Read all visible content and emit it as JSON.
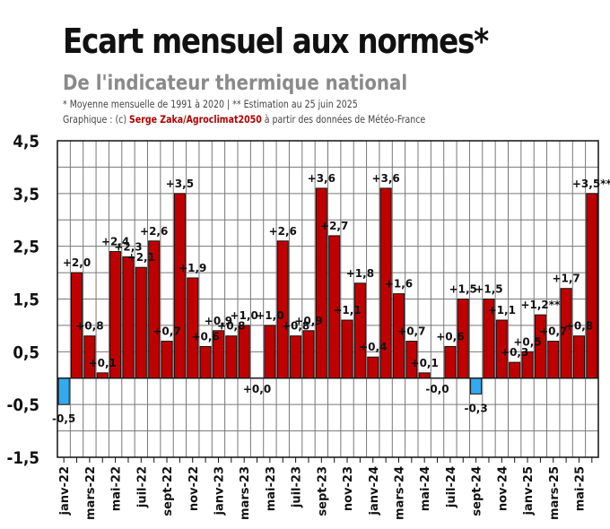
{
  "header": {
    "title": "Ecart mensuel aux normes*",
    "subtitle": "De l'indicateur thermique national",
    "note_line1": "* Moyenne mensuelle de 1991  à 2020 | ** Estimation  au 25 juin 2025",
    "note_prefix": "Graphique  : (c) ",
    "credit": "Serge Zaka/Agroclimat2050",
    "note_suffix": "  à partir des données de Météo-France"
  },
  "colors": {
    "positive": "#c00000",
    "negative": "#33aaee",
    "grid": "#777777",
    "outline": "#111111"
  },
  "chart_data": {
    "type": "bar",
    "title": "Ecart mensuel aux normes*",
    "subtitle": "De l'indicateur thermique national",
    "xlabel": "",
    "ylabel": "",
    "ylim": [
      -1.5,
      4.5
    ],
    "yticks": [
      "4,5",
      "3,5",
      "2,5",
      "1,5",
      "0,5",
      "-0,5",
      "-1,5"
    ],
    "ytick_values": [
      4.5,
      3.5,
      2.5,
      1.5,
      0.5,
      -0.5,
      -1.5
    ],
    "grid": true,
    "categories": [
      "janv-22",
      "févr-22",
      "mars-22",
      "avr-22",
      "mai-22",
      "juin-22",
      "juil-22",
      "août-22",
      "sept-22",
      "oct-22",
      "nov-22",
      "déc-22",
      "janv-23",
      "févr-23",
      "mars-23",
      "avr-23",
      "mai-23",
      "juin-23",
      "juil-23",
      "août-23",
      "sept-23",
      "oct-23",
      "nov-23",
      "déc-23",
      "janv-24",
      "févr-24",
      "mars-24",
      "avr-24",
      "mai-24",
      "juin-24",
      "juil-24",
      "août-24",
      "sept-24",
      "oct-24",
      "nov-24",
      "déc-24",
      "janv-25",
      "févr-25",
      "mars-25",
      "avr-25",
      "mai-25",
      "juin-25"
    ],
    "tick_labels": [
      "janv-22",
      "",
      "mars-22",
      "",
      "mai-22",
      "",
      "juil-22",
      "",
      "sept-22",
      "",
      "nov-22",
      "",
      "janv-23",
      "",
      "mars-23",
      "",
      "mai-23",
      "",
      "juil-23",
      "",
      "sept-23",
      "",
      "nov-23",
      "",
      "janv-24",
      "",
      "mars-24",
      "",
      "mai-24",
      "",
      "juil-24",
      "",
      "sept-24",
      "",
      "nov-24",
      "",
      "janv-25",
      "",
      "mars-25",
      "",
      "mai-25",
      ""
    ],
    "values": [
      -0.5,
      2.0,
      0.8,
      0.1,
      2.4,
      2.3,
      2.1,
      2.6,
      0.7,
      3.5,
      1.9,
      0.6,
      0.9,
      0.8,
      1.0,
      0.0,
      1.0,
      2.6,
      0.8,
      0.9,
      3.6,
      2.7,
      1.1,
      1.8,
      0.4,
      3.6,
      1.6,
      0.7,
      0.1,
      0.0,
      0.6,
      1.5,
      -0.3,
      1.5,
      1.1,
      0.3,
      0.5,
      1.2,
      0.7,
      1.7,
      0.8,
      3.5
    ],
    "data_labels": [
      "-0,5",
      "+2,0",
      "+0,8",
      "+0,1",
      "+2,4",
      "+2,3",
      "+2,1",
      "+2,6",
      "+0,7",
      "+3,5",
      "+1,9",
      "+0,6",
      "+0,9",
      "+0,8",
      "+1,0",
      "+0,0",
      "+1,0",
      "+2,6",
      "+0,8",
      "+0,9",
      "+3,6",
      "+2,7",
      "+1,1",
      "+1,8",
      "+0,4",
      "+3,6",
      "+1,6",
      "+0,7",
      "+0,1",
      "-0,0",
      "+0,6",
      "+1,5",
      "-0,3",
      "+1,5",
      "+1,1",
      "+0,3",
      "+0,5",
      "+1,2**",
      "+0,7",
      "+1,7",
      "+0,8",
      "+3,5**"
    ]
  }
}
